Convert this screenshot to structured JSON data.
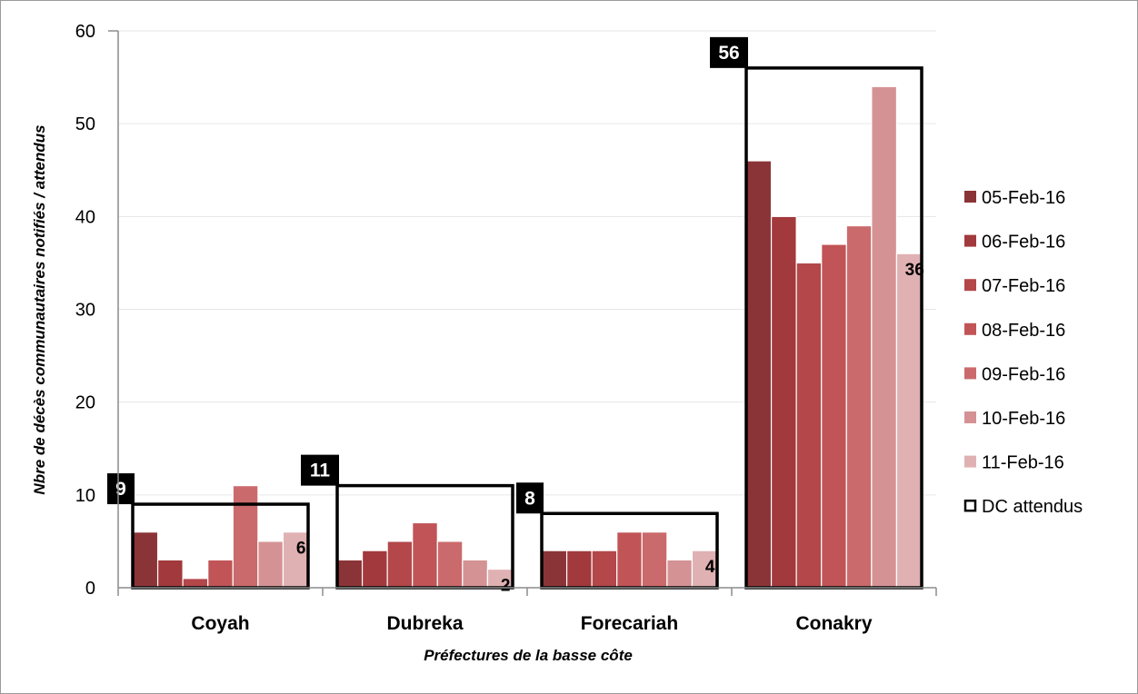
{
  "chart_data": {
    "type": "bar",
    "title": "",
    "xlabel": "Préfectures de la basse côte",
    "ylabel": "Nbre de décès communautaires notifiés / attendus",
    "ylim": [
      0,
      60
    ],
    "yticks": [
      "0",
      "10",
      "20",
      "30",
      "40",
      "50",
      "60"
    ],
    "grid": "horizontal",
    "legend_position": "right",
    "categories": [
      "Coyah",
      "Dubreka",
      "Forecariah",
      "Conakry"
    ],
    "series": [
      {
        "name": "05-Feb-16",
        "color": "#8b3437",
        "values": [
          6,
          3,
          4,
          46
        ]
      },
      {
        "name": "06-Feb-16",
        "color": "#a2393c",
        "values": [
          3,
          4,
          4,
          40
        ]
      },
      {
        "name": "07-Feb-16",
        "color": "#b3474a",
        "values": [
          1,
          5,
          4,
          35
        ]
      },
      {
        "name": "08-Feb-16",
        "color": "#c15456",
        "values": [
          3,
          7,
          6,
          37
        ]
      },
      {
        "name": "09-Feb-16",
        "color": "#cb6a6c",
        "values": [
          11,
          5,
          6,
          39
        ]
      },
      {
        "name": "10-Feb-16",
        "color": "#d59294",
        "values": [
          5,
          3,
          3,
          54
        ]
      },
      {
        "name": "11-Feb-16",
        "color": "#e0b1b3",
        "values": [
          6,
          2,
          4,
          36
        ]
      }
    ],
    "expected": {
      "name": "DC attendus",
      "values": [
        9,
        11,
        8,
        56
      ],
      "labels": [
        "9",
        "11",
        "8",
        "56"
      ]
    },
    "last_value_labels": [
      "6",
      "2",
      "4",
      "36"
    ]
  }
}
